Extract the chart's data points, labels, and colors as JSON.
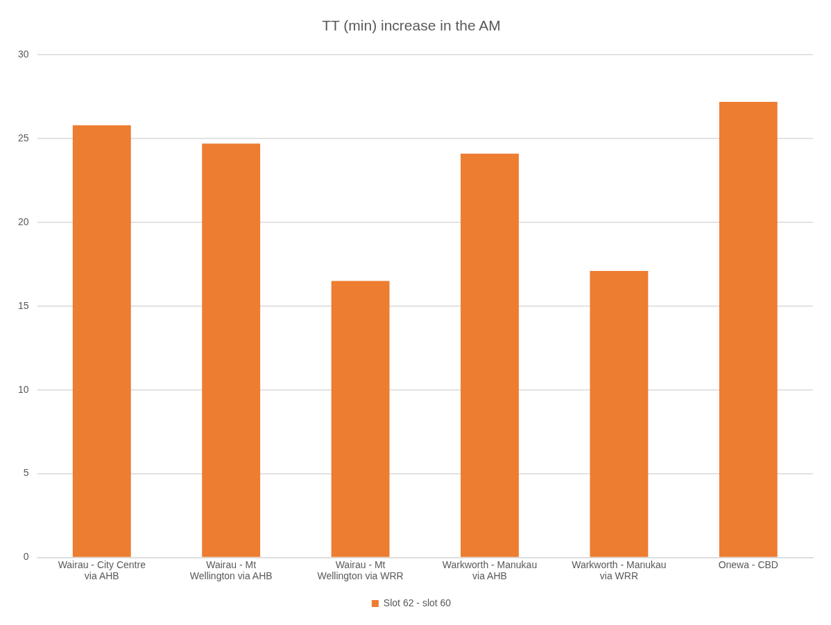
{
  "chart_data": {
    "type": "bar",
    "title": "TT (min) increase in the AM",
    "categories": [
      "Wairau - City Centre via AHB",
      "Wairau - Mt Wellington via AHB",
      "Wairau - Mt Wellington via WRR",
      "Warkworth - Manukau via AHB",
      "Warkworth - Manukau via WRR",
      "Onewa - CBD"
    ],
    "series": [
      {
        "name": "Slot 62 - slot 60",
        "color": "#ed7d31",
        "values": [
          25.8,
          24.7,
          16.5,
          24.1,
          17.1,
          27.2
        ]
      }
    ],
    "ylim": [
      0,
      30
    ],
    "yticks": [
      0,
      5,
      10,
      15,
      20,
      25,
      30
    ],
    "grid": "y",
    "legend": "bottom"
  }
}
